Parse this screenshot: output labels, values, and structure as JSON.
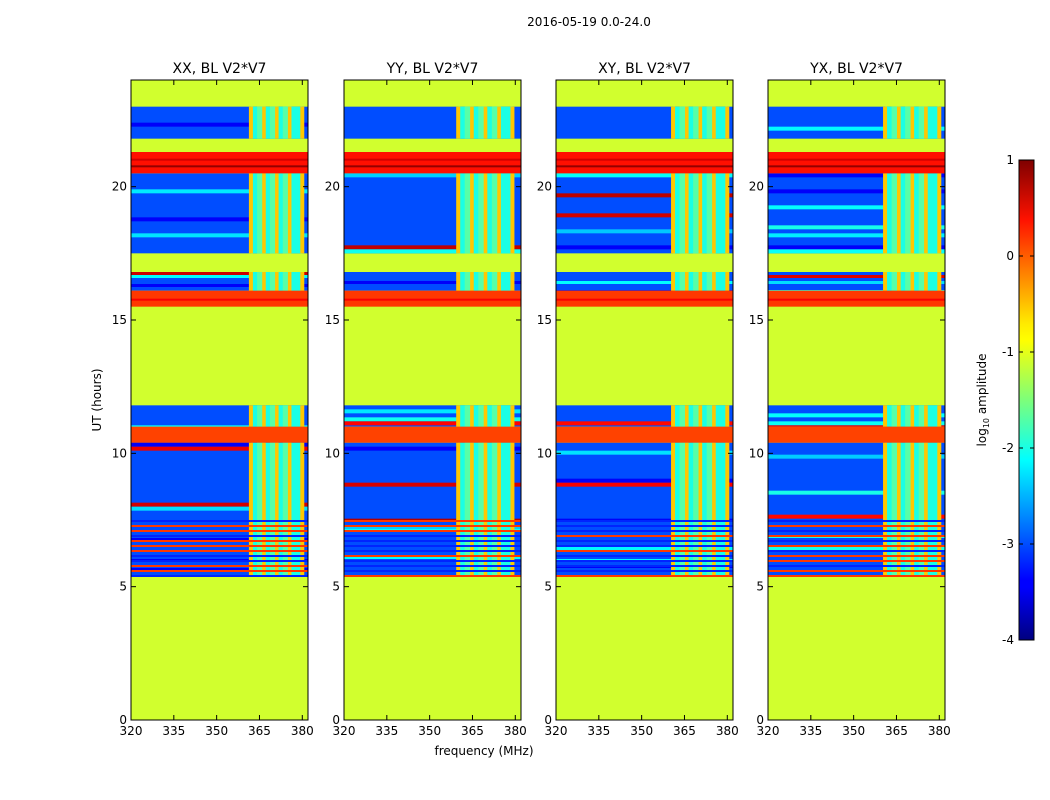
{
  "chart_data": {
    "type": "heatmap",
    "title": "2016-05-19 0.0-24.0",
    "xlabel": "frequency (MHz)",
    "ylabel": "UT (hours)",
    "xlim": [
      320,
      382
    ],
    "ylim": [
      0,
      24
    ],
    "x_ticks": [
      320,
      335,
      350,
      365,
      380
    ],
    "y_ticks": [
      0,
      5,
      10,
      15,
      20
    ],
    "panels": [
      {
        "title": "XX, BL V2*V7",
        "rfi_start_mhz": 362,
        "rfi_end_mhz": 380
      },
      {
        "title": "YY, BL V2*V7",
        "rfi_start_mhz": 360,
        "rfi_end_mhz": 379
      },
      {
        "title": "XY, BL V2*V7",
        "rfi_start_mhz": 361,
        "rfi_end_mhz": 380
      },
      {
        "title": "YX, BL V2*V7",
        "rfi_start_mhz": 361,
        "rfi_end_mhz": 380
      }
    ],
    "time_segments": [
      {
        "from": 0.0,
        "to": 5.4,
        "log_amplitude": -1.1,
        "state": "flagged"
      },
      {
        "from": 5.4,
        "to": 7.5,
        "log_amplitude": -3.0,
        "state": "observed with strong RFI stripes"
      },
      {
        "from": 10.4,
        "to": 11.0,
        "log_amplitude": 0.05,
        "state": "saturated"
      },
      {
        "from": 11.0,
        "to": 11.8,
        "log_amplitude": -3.0,
        "state": "observed"
      },
      {
        "from": 11.8,
        "to": 15.5,
        "log_amplitude": -1.1,
        "state": "flagged"
      },
      {
        "from": 15.5,
        "to": 16.1,
        "log_amplitude": 0.1,
        "state": "saturated"
      },
      {
        "from": 17.5,
        "to": 20.5,
        "log_amplitude": -3.0,
        "state": "observed"
      },
      {
        "from": 20.5,
        "to": 21.3,
        "log_amplitude": 0.3,
        "state": "saturated"
      },
      {
        "from": 21.3,
        "to": 21.8,
        "log_amplitude": -1.1,
        "state": "flagged"
      },
      {
        "from": 21.8,
        "to": 23.0,
        "log_amplitude": -3.0,
        "state": "observed"
      },
      {
        "from": 23.0,
        "to": 24.0,
        "log_amplitude": -1.1,
        "state": "flagged"
      }
    ],
    "colorbar": {
      "label": "log",
      "label_subscript": "10",
      "label_suffix": " amplitude",
      "range": [
        -4,
        1
      ],
      "ticks": [
        1,
        0,
        -1,
        -2,
        -3,
        -4
      ],
      "colormap": "jet"
    }
  }
}
